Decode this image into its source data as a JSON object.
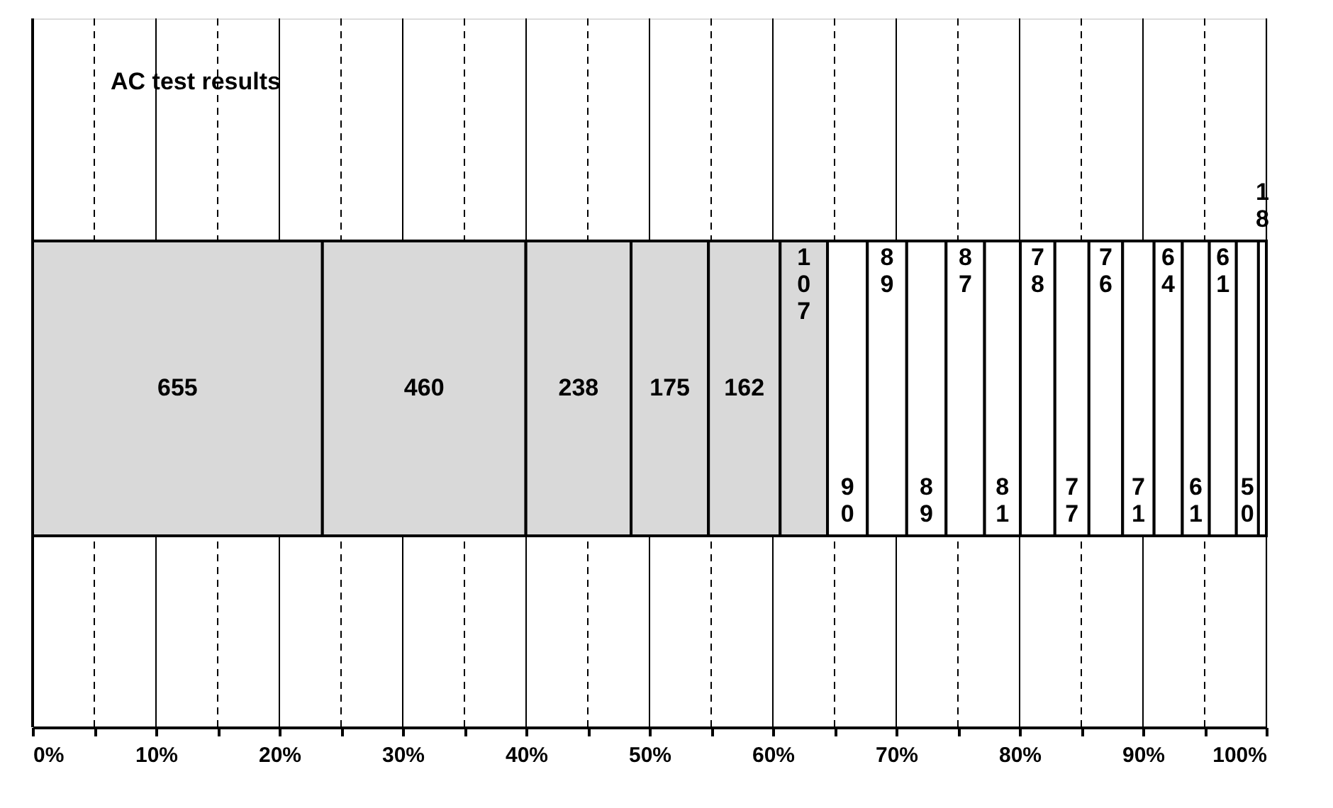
{
  "chart_data": {
    "type": "bar",
    "orientation": "horizontal",
    "stacked": true,
    "title": "AC test results",
    "categories": [
      null
    ],
    "series": [
      {
        "color": "#d9d9d9",
        "values": [
          23.49
        ]
      },
      {
        "color": "#d9d9d9",
        "values": [
          16.49
        ]
      },
      {
        "color": "#d9d9d9",
        "values": [
          8.53
        ]
      },
      {
        "color": "#d9d9d9",
        "values": [
          6.27
        ]
      },
      {
        "color": "#d9d9d9",
        "values": [
          5.81
        ]
      },
      {
        "color": "#d9d9d9",
        "values": [
          3.84
        ]
      },
      {
        "color": "#ffffff",
        "values": [
          3.23
        ]
      },
      {
        "color": "#ffffff",
        "values": [
          3.19
        ]
      },
      {
        "color": "#ffffff",
        "values": [
          3.19
        ]
      },
      {
        "color": "#ffffff",
        "values": [
          3.12
        ]
      },
      {
        "color": "#ffffff",
        "values": [
          2.9
        ]
      },
      {
        "color": "#ffffff",
        "values": [
          2.8
        ]
      },
      {
        "color": "#ffffff",
        "values": [
          2.76
        ]
      },
      {
        "color": "#ffffff",
        "values": [
          2.73
        ]
      },
      {
        "color": "#ffffff",
        "values": [
          2.55
        ]
      },
      {
        "color": "#ffffff",
        "values": [
          2.29
        ]
      },
      {
        "color": "#ffffff",
        "values": [
          2.19
        ]
      },
      {
        "color": "#ffffff",
        "values": [
          2.19
        ]
      },
      {
        "color": "#ffffff",
        "values": [
          1.79
        ]
      },
      {
        "color": "#ffffff",
        "values": [
          0.64
        ]
      }
    ],
    "value_labels": [
      "655",
      "460",
      "238",
      "175",
      "162",
      "107",
      "90",
      "89",
      "89",
      "87",
      "81",
      "78",
      "77",
      "76",
      "71",
      "64",
      "61",
      "61",
      "50",
      "18"
    ],
    "xlim": [
      0,
      100
    ],
    "xticks": [
      {
        "value": 0,
        "label": "0%"
      },
      {
        "value": 5,
        "label": null
      },
      {
        "value": 10,
        "label": "10%"
      },
      {
        "value": 15,
        "label": null
      },
      {
        "value": 20,
        "label": "20%"
      },
      {
        "value": 25,
        "label": null
      },
      {
        "value": 30,
        "label": "30%"
      },
      {
        "value": 35,
        "label": null
      },
      {
        "value": 40,
        "label": "40%"
      },
      {
        "value": 45,
        "label": null
      },
      {
        "value": 50,
        "label": "50%"
      },
      {
        "value": 55,
        "label": null
      },
      {
        "value": 60,
        "label": "60%"
      },
      {
        "value": 65,
        "label": null
      },
      {
        "value": 70,
        "label": "70%"
      },
      {
        "value": 75,
        "label": null
      },
      {
        "value": 80,
        "label": "80%"
      },
      {
        "value": 85,
        "label": null
      },
      {
        "value": 90,
        "label": "90%"
      },
      {
        "value": 95,
        "label": null
      },
      {
        "value": 100,
        "label": "100%"
      }
    ],
    "grid": "x"
  }
}
